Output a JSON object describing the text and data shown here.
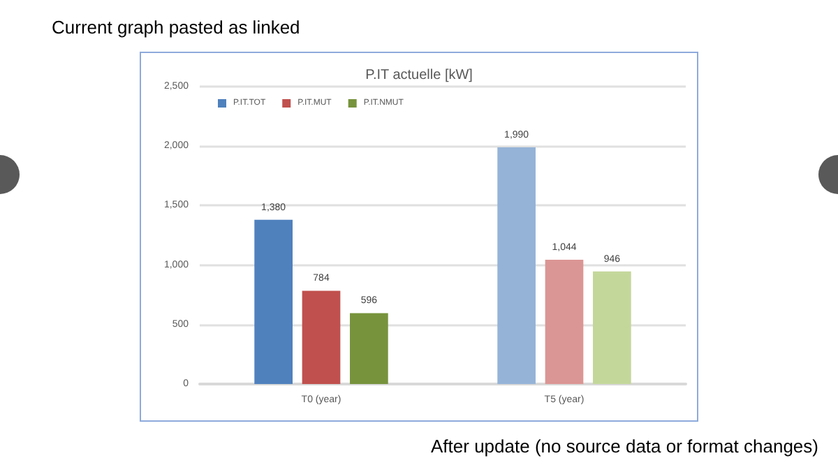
{
  "chart_data": {
    "type": "bar",
    "title": "P.IT actuelle [kW]",
    "annotations": [
      "Current graph pasted as linked",
      "After  update (no source data or format changes)"
    ],
    "categories": [
      "T0 (year)",
      "T5 (year)"
    ],
    "series": [
      {
        "name": "P.IT.TOT",
        "color": "#4f81bd",
        "colors": [
          "#4f81bd",
          "#95b3d7"
        ],
        "values": [
          1380,
          1990
        ],
        "value_labels": [
          "1,380",
          "1,990"
        ]
      },
      {
        "name": "P.IT.MUT",
        "color": "#c0504d",
        "colors": [
          "#c0504d",
          "#da9694"
        ],
        "values": [
          784,
          1044
        ],
        "value_labels": [
          "784",
          "1,044"
        ]
      },
      {
        "name": "P.IT.NMUT",
        "color": "#77933c",
        "colors": [
          "#77933c",
          "#c4d79b"
        ],
        "values": [
          596,
          946
        ],
        "value_labels": [
          "596",
          "946"
        ]
      }
    ],
    "ylim": [
      0,
      2500
    ],
    "yticks": [
      {
        "value": 0,
        "label": "0"
      },
      {
        "value": 500,
        "label": "500"
      },
      {
        "value": 1000,
        "label": "1,000"
      },
      {
        "value": 1500,
        "label": "1,500"
      },
      {
        "value": 2000,
        "label": "2,000"
      },
      {
        "value": 2500,
        "label": "2,500"
      }
    ],
    "grid": "y",
    "legend": "top left"
  }
}
